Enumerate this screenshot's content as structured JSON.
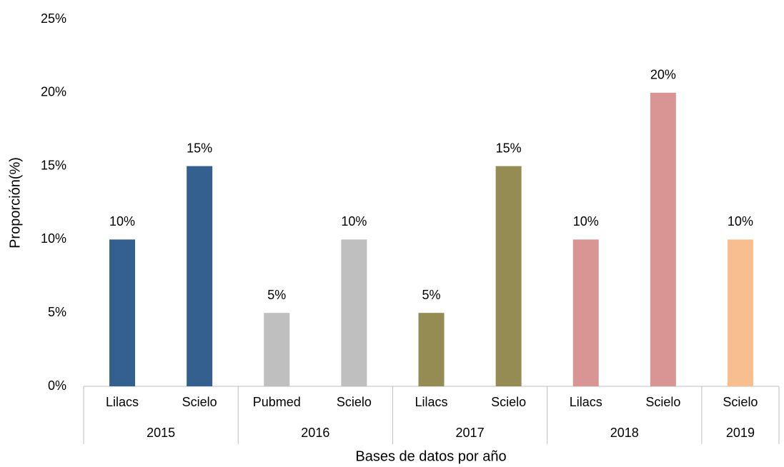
{
  "chart_data": {
    "type": "bar",
    "x_label": "Bases de datos por año",
    "y_label": "Proporción(%)",
    "groups": [
      {
        "name": "2015",
        "color": "#34608f",
        "categories": [
          "Lilacs",
          "Scielo"
        ],
        "values": [
          10,
          15
        ],
        "value_labels": [
          "10%",
          "15%"
        ]
      },
      {
        "name": "2016",
        "color": "#bfbfbf",
        "categories": [
          "Pubmed",
          "Scielo"
        ],
        "values": [
          5,
          10
        ],
        "value_labels": [
          "5%",
          "10%"
        ]
      },
      {
        "name": "2017",
        "color": "#958c53",
        "categories": [
          "Lilacs",
          "Scielo"
        ],
        "values": [
          5,
          15
        ],
        "value_labels": [
          "5%",
          "15%"
        ]
      },
      {
        "name": "2018",
        "color": "#d99594",
        "categories": [
          "Lilacs",
          "Scielo"
        ],
        "values": [
          10,
          20
        ],
        "value_labels": [
          "10%",
          "20%"
        ]
      },
      {
        "name": "2019",
        "color": "#f9be8f",
        "categories": [
          "Scielo"
        ],
        "values": [
          10
        ],
        "value_labels": [
          "10%"
        ]
      }
    ],
    "ylim": [
      0,
      25
    ],
    "yticks": [
      {
        "value": 0,
        "label": "0%"
      },
      {
        "value": 5,
        "label": "5%"
      },
      {
        "value": 10,
        "label": "10%"
      },
      {
        "value": 15,
        "label": "15%"
      },
      {
        "value": 20,
        "label": "20%"
      },
      {
        "value": 25,
        "label": "25%"
      }
    ],
    "grid": false
  }
}
